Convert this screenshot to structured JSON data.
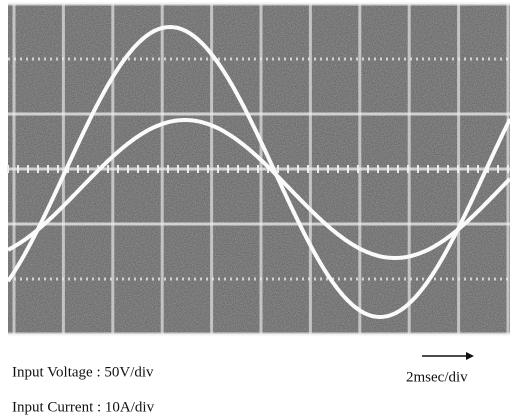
{
  "labels": {
    "voltage": "Input Voltage : 50V/div",
    "current": "Input Current : 10A/div",
    "timebase": "2msec/div"
  }
}
